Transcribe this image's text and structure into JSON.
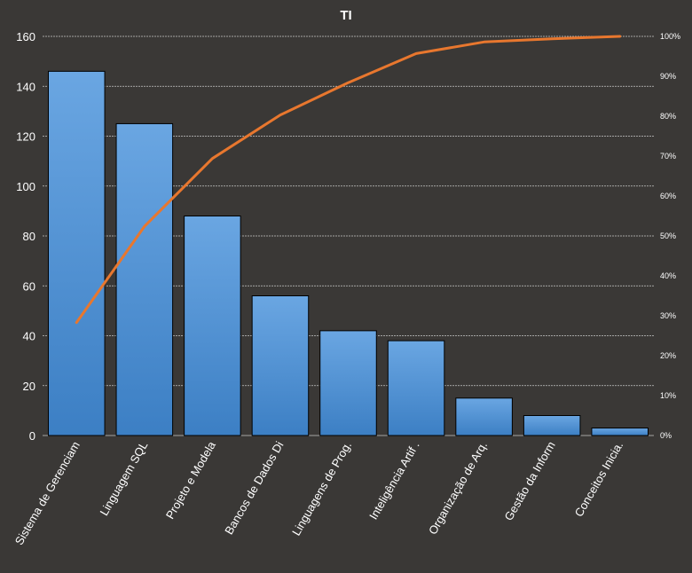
{
  "colors": {
    "background": "#3a3836",
    "bar": "#4a8fd4",
    "bar_top": "#6aa6e2",
    "bar_bottom": "#3c7fc4",
    "line": "#e8772e",
    "grid": "#c8c8c8",
    "text": "#ffffff"
  },
  "chart_data": {
    "type": "bar",
    "title": "TI",
    "categories": [
      "Sistema de Gerenciam",
      "Linguagem SQL",
      "Projeto e Modela",
      "Bancos de Dados Di",
      "Linguagens de Prog.",
      "Inteligência Artif .",
      "Organização de Arq.",
      "Gestão da Inform",
      "Conceitos Inicia."
    ],
    "series": [
      {
        "type": "bar",
        "axis": "left",
        "values": [
          146,
          125,
          88,
          56,
          42,
          38,
          15,
          8,
          3
        ]
      },
      {
        "type": "line",
        "axis": "right",
        "values": [
          28.3,
          52.4,
          69.4,
          80.3,
          88.4,
          95.7,
          98.6,
          99.4,
          100
        ]
      }
    ],
    "ylim": [
      0,
      160
    ],
    "yticks": [
      "0",
      "20",
      "40",
      "60",
      "80",
      "100",
      "120",
      "140",
      "160"
    ],
    "y2lim": [
      0,
      100
    ],
    "y2ticks": [
      "0%",
      "10%",
      "20%",
      "30%",
      "40%",
      "50%",
      "60%",
      "70%",
      "80%",
      "90%",
      "100%"
    ],
    "grid": true,
    "legend": "none"
  }
}
